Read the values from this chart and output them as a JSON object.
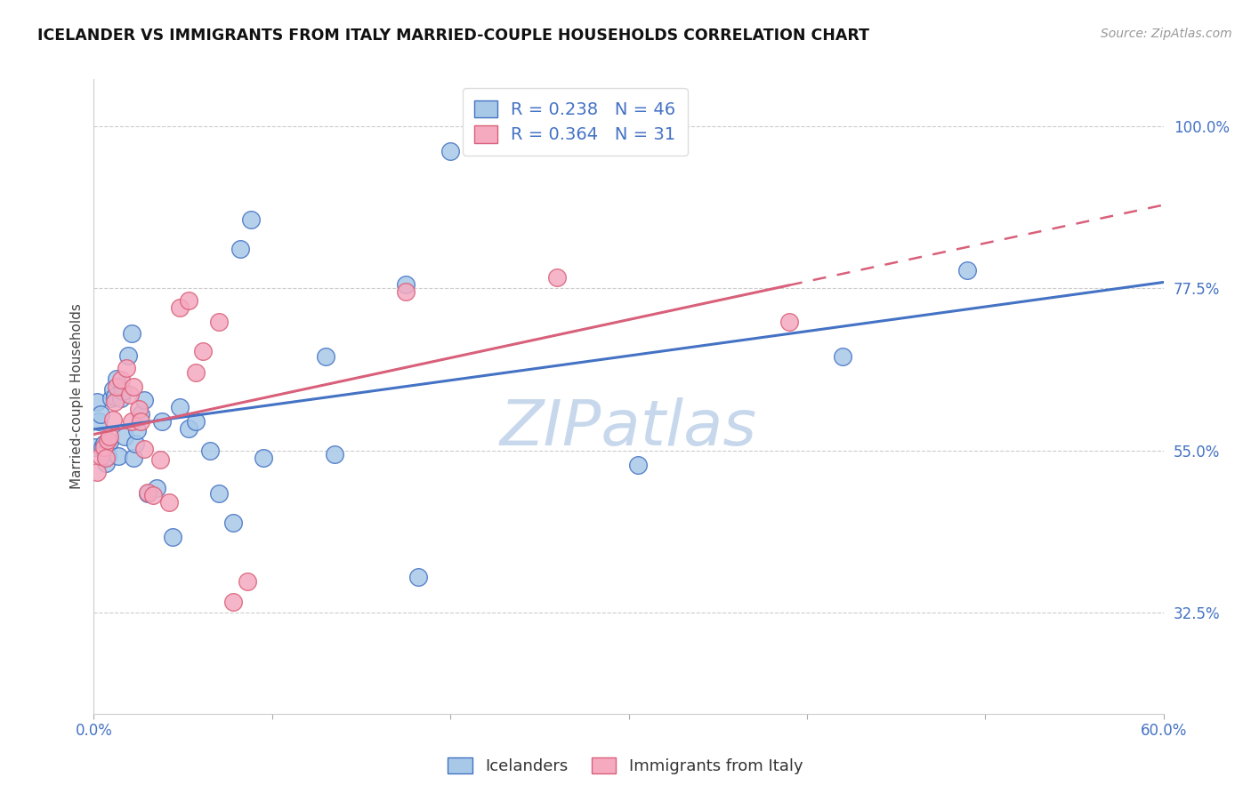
{
  "title": "ICELANDER VS IMMIGRANTS FROM ITALY MARRIED-COUPLE HOUSEHOLDS CORRELATION CHART",
  "source": "Source: ZipAtlas.com",
  "ylabel": "Married-couple Households",
  "xmin": 0.0,
  "xmax": 0.6,
  "ymin": 0.185,
  "ymax": 1.065,
  "yticks": [
    0.325,
    0.55,
    0.775,
    1.0
  ],
  "ytick_labels": [
    "32.5%",
    "55.0%",
    "77.5%",
    "100.0%"
  ],
  "xticks": [
    0.0,
    0.1,
    0.2,
    0.3,
    0.4,
    0.5,
    0.6
  ],
  "xtick_labels": [
    "0.0%",
    "",
    "",
    "",
    "",
    "",
    "60.0%"
  ],
  "legend_label1": "Icelanders",
  "legend_label2": "Immigrants from Italy",
  "R1": 0.238,
  "N1": 46,
  "R2": 0.364,
  "N2": 31,
  "color_blue": "#a8c8e8",
  "color_pink": "#f5aac0",
  "line_color_blue": "#4472c4",
  "line_color_pink": "#d9607a",
  "text_color_blue": "#4472c4",
  "watermark_color": "#c8d8ec",
  "blue_points": [
    [
      0.001,
      0.555
    ],
    [
      0.002,
      0.618
    ],
    [
      0.003,
      0.59
    ],
    [
      0.004,
      0.6
    ],
    [
      0.005,
      0.555
    ],
    [
      0.006,
      0.56
    ],
    [
      0.007,
      0.532
    ],
    [
      0.007,
      0.548
    ],
    [
      0.008,
      0.542
    ],
    [
      0.009,
      0.562
    ],
    [
      0.01,
      0.622
    ],
    [
      0.011,
      0.635
    ],
    [
      0.012,
      0.625
    ],
    [
      0.013,
      0.65
    ],
    [
      0.014,
      0.542
    ],
    [
      0.015,
      0.622
    ],
    [
      0.016,
      0.632
    ],
    [
      0.017,
      0.57
    ],
    [
      0.019,
      0.682
    ],
    [
      0.021,
      0.712
    ],
    [
      0.022,
      0.54
    ],
    [
      0.023,
      0.56
    ],
    [
      0.024,
      0.578
    ],
    [
      0.026,
      0.6
    ],
    [
      0.028,
      0.62
    ],
    [
      0.03,
      0.49
    ],
    [
      0.035,
      0.498
    ],
    [
      0.038,
      0.59
    ],
    [
      0.044,
      0.43
    ],
    [
      0.048,
      0.61
    ],
    [
      0.053,
      0.58
    ],
    [
      0.057,
      0.59
    ],
    [
      0.065,
      0.55
    ],
    [
      0.07,
      0.49
    ],
    [
      0.078,
      0.45
    ],
    [
      0.082,
      0.83
    ],
    [
      0.088,
      0.87
    ],
    [
      0.095,
      0.54
    ],
    [
      0.13,
      0.68
    ],
    [
      0.135,
      0.545
    ],
    [
      0.175,
      0.78
    ],
    [
      0.182,
      0.375
    ],
    [
      0.2,
      0.965
    ],
    [
      0.305,
      0.53
    ],
    [
      0.42,
      0.68
    ],
    [
      0.49,
      0.8
    ]
  ],
  "pink_points": [
    [
      0.002,
      0.52
    ],
    [
      0.004,
      0.542
    ],
    [
      0.006,
      0.555
    ],
    [
      0.007,
      0.54
    ],
    [
      0.008,
      0.565
    ],
    [
      0.009,
      0.57
    ],
    [
      0.011,
      0.593
    ],
    [
      0.012,
      0.618
    ],
    [
      0.013,
      0.638
    ],
    [
      0.015,
      0.648
    ],
    [
      0.018,
      0.665
    ],
    [
      0.02,
      0.628
    ],
    [
      0.021,
      0.59
    ],
    [
      0.022,
      0.638
    ],
    [
      0.025,
      0.608
    ],
    [
      0.026,
      0.59
    ],
    [
      0.028,
      0.552
    ],
    [
      0.03,
      0.492
    ],
    [
      0.033,
      0.488
    ],
    [
      0.037,
      0.538
    ],
    [
      0.042,
      0.478
    ],
    [
      0.048,
      0.748
    ],
    [
      0.053,
      0.758
    ],
    [
      0.057,
      0.658
    ],
    [
      0.061,
      0.688
    ],
    [
      0.07,
      0.728
    ],
    [
      0.078,
      0.34
    ],
    [
      0.086,
      0.368
    ],
    [
      0.175,
      0.77
    ],
    [
      0.26,
      0.79
    ],
    [
      0.39,
      0.728
    ]
  ]
}
